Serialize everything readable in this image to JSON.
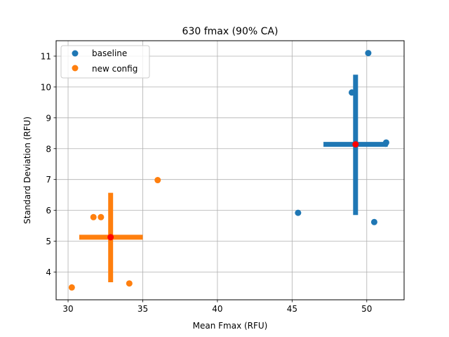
{
  "chart_data": {
    "type": "scatter",
    "title": "630 fmax (90% CA)",
    "xlabel": "Mean Fmax (RFU)",
    "ylabel": "Standard Deviation (RFU)",
    "xlim": [
      29.2,
      52.5
    ],
    "ylim": [
      3.1,
      11.5
    ],
    "xticks": [
      30,
      35,
      40,
      45,
      50
    ],
    "yticks": [
      4,
      5,
      6,
      7,
      8,
      9,
      10,
      11
    ],
    "grid": true,
    "legend_position": "top-left",
    "series": [
      {
        "name": "baseline",
        "color": "#1f77b4",
        "points": [
          {
            "x": 50.1,
            "y": 11.1
          },
          {
            "x": 49.0,
            "y": 9.82
          },
          {
            "x": 51.3,
            "y": 8.2
          },
          {
            "x": 51.25,
            "y": 8.16
          },
          {
            "x": 45.4,
            "y": 5.92
          },
          {
            "x": 50.5,
            "y": 5.62
          }
        ],
        "center": {
          "x": 49.25,
          "y": 8.14
        },
        "ci_x": [
          47.1,
          51.4
        ],
        "ci_y": [
          5.85,
          10.4
        ]
      },
      {
        "name": "new config",
        "color": "#ff7f0e",
        "points": [
          {
            "x": 36.0,
            "y": 6.98
          },
          {
            "x": 31.7,
            "y": 5.78
          },
          {
            "x": 32.2,
            "y": 5.78
          },
          {
            "x": 30.25,
            "y": 3.5
          },
          {
            "x": 34.1,
            "y": 3.63
          }
        ],
        "center": {
          "x": 32.85,
          "y": 5.13
        },
        "ci_x": [
          30.75,
          35.0
        ],
        "ci_y": [
          3.67,
          6.57
        ]
      }
    ],
    "center_marker_color": "#ff0000"
  }
}
